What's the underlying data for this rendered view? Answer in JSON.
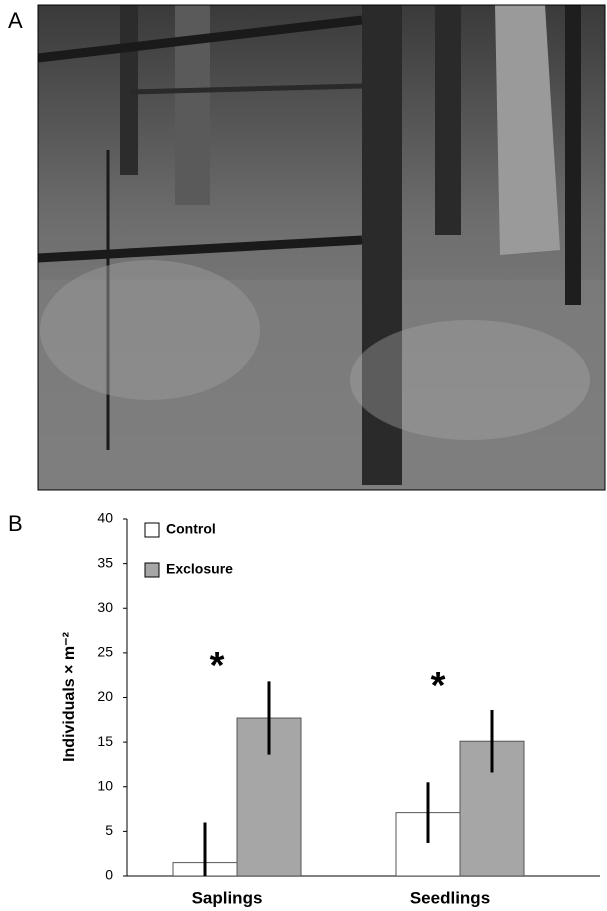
{
  "panels": {
    "photo_label": "A",
    "chart_label": "B"
  },
  "chart_data": {
    "type": "bar",
    "y_label": "Individuals × m⁻²",
    "categories": [
      "Saplings",
      "Seedlings"
    ],
    "series": [
      {
        "name": "Control",
        "color": "#ffffff",
        "values": [
          1.5,
          7.1
        ],
        "errors": [
          4.5,
          3.4
        ]
      },
      {
        "name": "Exclosure",
        "color": "#a6a6a6",
        "values": [
          17.7,
          15.1
        ],
        "errors": [
          4.1,
          3.5
        ]
      }
    ],
    "annotations": [
      "*",
      "*"
    ],
    "ylim": [
      0,
      40
    ],
    "yticks": [
      0,
      5,
      10,
      15,
      20,
      25,
      30,
      35,
      40
    ],
    "grid": false
  }
}
